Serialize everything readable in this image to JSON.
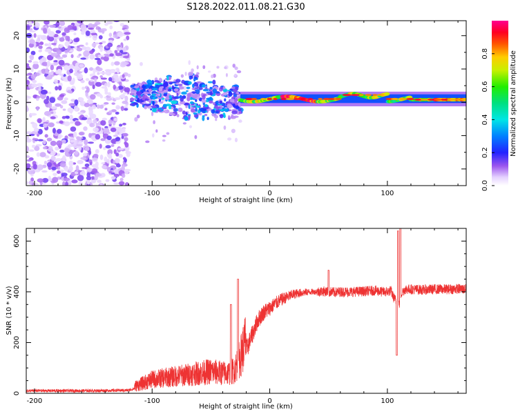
{
  "title": "S128.2022.011.08.21.G30",
  "chart_data": [
    {
      "type": "heatmap",
      "name": "spectrogram",
      "xlabel": "Height of straight line (km)",
      "ylabel": "Frequency (Hz)",
      "xlim": [
        -207,
        167
      ],
      "ylim": [
        -25,
        24.5
      ],
      "xticks": [
        -200,
        -100,
        0,
        100
      ],
      "yticks": [
        -20,
        -10,
        0,
        10,
        20
      ],
      "colorbar": {
        "label": "Normalized spectral amplitude",
        "range": [
          0.0,
          1.0
        ],
        "ticks": [
          "0.0",
          "0.2",
          "0.4",
          "0.6",
          "0.8"
        ],
        "colormap": "rainbow (white-violet-blue-cyan-green-yellow-red-magenta)"
      },
      "features": [
        {
          "x_range": [
            -207,
            -120
          ],
          "freq_range": [
            -25,
            24.5
          ],
          "amplitude": "low, scattered noise"
        },
        {
          "x_range": [
            -120,
            -25
          ],
          "freq_range": [
            -12,
            10
          ],
          "amplitude": "medium-high, multipath cluster near 0-5 Hz"
        },
        {
          "x_range": [
            -25,
            167
          ],
          "freq_center": 1,
          "freq_width": 2,
          "amplitude": "high, narrow band near 0-2 Hz"
        }
      ]
    },
    {
      "type": "line",
      "name": "snr",
      "xlabel": "Height of straight line (km)",
      "ylabel": "SNR (10 * v/v)",
      "xlim": [
        -207,
        167
      ],
      "ylim": [
        0,
        650
      ],
      "xticks": [
        -200,
        -100,
        0,
        100
      ],
      "yticks": [
        0,
        200,
        400,
        600
      ],
      "color": "#ee3333",
      "x": [
        -207,
        -180,
        -150,
        -120,
        -110,
        -100,
        -90,
        -80,
        -70,
        -60,
        -50,
        -40,
        -35,
        -30,
        -25,
        -20,
        -15,
        -10,
        -5,
        0,
        5,
        10,
        15,
        20,
        25,
        30,
        35,
        40,
        45,
        50,
        55,
        60,
        70,
        80,
        90,
        95,
        100,
        103,
        105,
        108,
        110,
        112,
        115,
        120,
        130,
        140,
        150,
        160,
        167
      ],
      "y": [
        10,
        10,
        10,
        12,
        25,
        40,
        45,
        50,
        55,
        60,
        65,
        60,
        60,
        70,
        110,
        170,
        230,
        290,
        320,
        335,
        355,
        370,
        380,
        390,
        395,
        398,
        400,
        400,
        402,
        400,
        398,
        400,
        400,
        402,
        405,
        400,
        400,
        405,
        380,
        360,
        350,
        395,
        410,
        410,
        408,
        410,
        410,
        412,
        410
      ],
      "spikes": [
        {
          "x": -33,
          "y": 350
        },
        {
          "x": -27,
          "y": 450
        },
        {
          "x": 50,
          "y": 485
        },
        {
          "x": 109,
          "y": 640
        },
        {
          "x": 111,
          "y": 650
        },
        {
          "x": 108,
          "y": 150
        }
      ]
    }
  ]
}
